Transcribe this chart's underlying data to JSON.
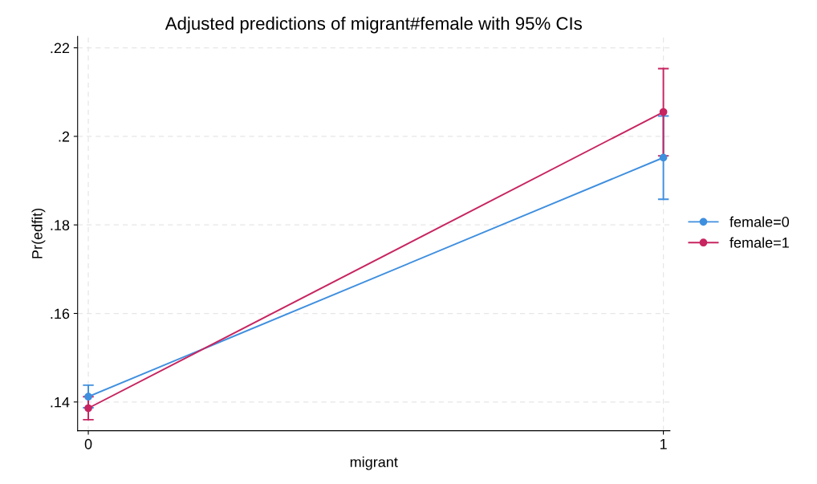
{
  "chart_data": {
    "type": "line",
    "title": "Adjusted predictions of migrant#female with 95% CIs",
    "xlabel": "migrant",
    "ylabel": "Pr(edfit)",
    "x": [
      0,
      1
    ],
    "xlim": [
      -0.0186,
      1.0114
    ],
    "xticks": [
      0,
      1
    ],
    "ylim": [
      0.1335,
      0.2226
    ],
    "yticks": [
      {
        "value": 0.14,
        "label": ".14"
      },
      {
        "value": 0.16,
        "label": ".16"
      },
      {
        "value": 0.18,
        "label": ".18"
      },
      {
        "value": 0.2,
        "label": ".2"
      },
      {
        "value": 0.22,
        "label": ".22"
      }
    ],
    "series": [
      {
        "name": "female=0",
        "color": "#3f8fdf",
        "values": [
          0.1412,
          0.1952
        ],
        "errors": [
          [
            0.1387,
            0.1438
          ],
          [
            0.1858,
            0.2046
          ]
        ]
      },
      {
        "name": "female=1",
        "color": "#c72460",
        "values": [
          0.1386,
          0.2055
        ],
        "errors": [
          [
            0.136,
            0.1412
          ],
          [
            0.1956,
            0.2153
          ]
        ]
      }
    ],
    "grid": true,
    "legend": "right",
    "marker": "circle",
    "line_style": "solid"
  }
}
